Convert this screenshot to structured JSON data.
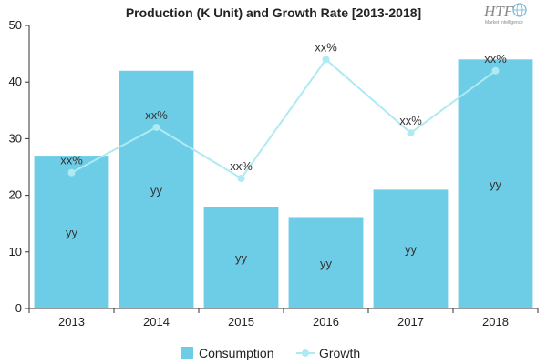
{
  "chart_data": {
    "type": "bar",
    "title": "Production (K Unit) and Growth Rate [2013-2018]",
    "categories": [
      "2013",
      "2014",
      "2015",
      "2016",
      "2017",
      "2018"
    ],
    "ylim": [
      0,
      50
    ],
    "yticks": [
      "0",
      "10",
      "20",
      "30",
      "40",
      "50"
    ],
    "grid": false,
    "legend_position": "bottom",
    "series": [
      {
        "name": "Consumption",
        "type": "bar",
        "color": "#6ecde6",
        "values": [
          27,
          42,
          18,
          16,
          21,
          44
        ],
        "labels": [
          "yy",
          "yy",
          "yy",
          "yy",
          "yy",
          "yy"
        ]
      },
      {
        "name": "Growth",
        "type": "line",
        "color": "#aeeaf2",
        "values": [
          24,
          32,
          23,
          44,
          31,
          42
        ],
        "labels": [
          "xx%",
          "xx%",
          "xx%",
          "xx%",
          "xx%",
          "xx%"
        ]
      }
    ]
  },
  "logo": {
    "text": "HTF",
    "subtitle": "Market Intelligence",
    "icon": "globe-icon"
  }
}
